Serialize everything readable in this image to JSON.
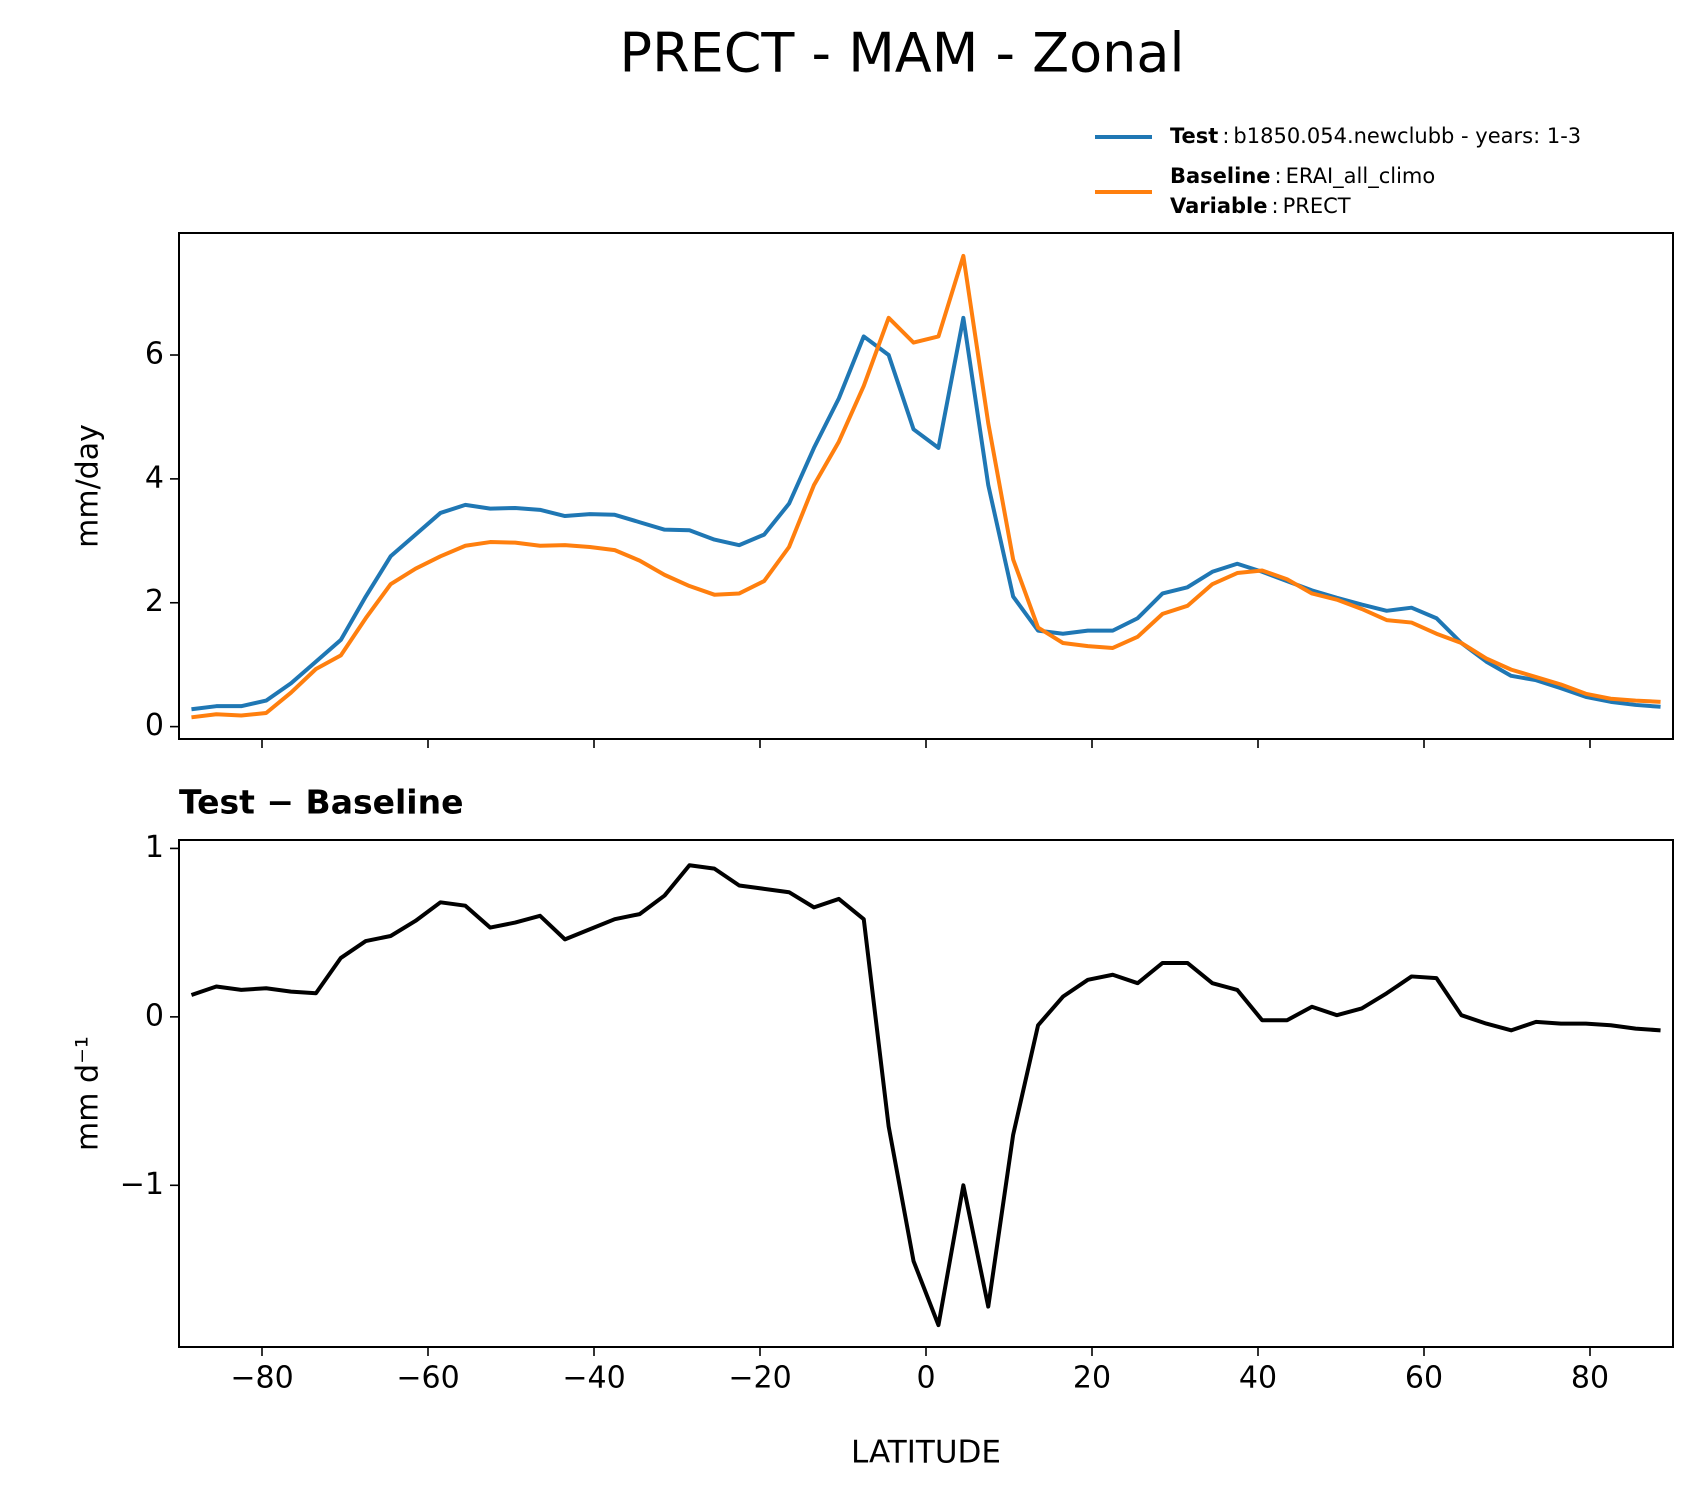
{
  "title": "PRECT - MAM - Zonal",
  "legend_separator": ":",
  "legend_variable": {
    "name": "Variable",
    "text": "PRECT"
  },
  "chart_data": [
    {
      "type": "line",
      "ylabel": "mm/day",
      "x": [
        -88.5,
        -85.5,
        -82.5,
        -79.5,
        -76.5,
        -73.5,
        -70.5,
        -67.5,
        -64.5,
        -61.5,
        -58.5,
        -55.5,
        -52.5,
        -49.5,
        -46.5,
        -43.5,
        -40.5,
        -37.5,
        -34.5,
        -31.5,
        -28.5,
        -25.5,
        -22.5,
        -19.5,
        -16.5,
        -13.5,
        -10.5,
        -7.5,
        -4.5,
        -1.5,
        1.5,
        4.5,
        7.5,
        10.5,
        13.5,
        16.5,
        19.5,
        22.5,
        25.5,
        28.5,
        31.5,
        34.5,
        37.5,
        40.5,
        43.5,
        46.5,
        49.5,
        52.5,
        55.5,
        58.5,
        61.5,
        64.5,
        67.5,
        70.5,
        73.5,
        76.5,
        79.5,
        82.5,
        85.5,
        88.5
      ],
      "series": [
        {
          "name": "Test",
          "text": "b1850.054.newclubb - years: 1-3",
          "color": "#1f77b4",
          "values": [
            0.28,
            0.33,
            0.33,
            0.42,
            0.7,
            1.05,
            1.4,
            2.1,
            2.75,
            3.1,
            3.45,
            3.58,
            3.52,
            3.53,
            3.5,
            3.4,
            3.43,
            3.42,
            3.3,
            3.18,
            3.17,
            3.02,
            2.93,
            3.1,
            3.6,
            4.5,
            5.3,
            6.3,
            6.0,
            4.8,
            4.5,
            6.6,
            3.9,
            2.1,
            1.55,
            1.5,
            1.55,
            1.55,
            1.75,
            2.15,
            2.25,
            2.5,
            2.63,
            2.5,
            2.35,
            2.2,
            2.08,
            1.97,
            1.87,
            1.92,
            1.75,
            1.35,
            1.05,
            0.82,
            0.75,
            0.62,
            0.48,
            0.4,
            0.35,
            0.32
          ]
        },
        {
          "name": "Baseline",
          "text": "ERAI_all_climo",
          "color": "#ff7f0e",
          "values": [
            0.15,
            0.2,
            0.18,
            0.22,
            0.55,
            0.93,
            1.15,
            1.75,
            2.3,
            2.55,
            2.75,
            2.92,
            2.98,
            2.97,
            2.92,
            2.93,
            2.9,
            2.85,
            2.68,
            2.45,
            2.27,
            2.13,
            2.15,
            2.35,
            2.9,
            3.9,
            4.6,
            5.5,
            6.6,
            6.2,
            6.3,
            7.6,
            4.9,
            2.7,
            1.6,
            1.35,
            1.3,
            1.27,
            1.45,
            1.82,
            1.95,
            2.3,
            2.48,
            2.52,
            2.38,
            2.15,
            2.05,
            1.9,
            1.72,
            1.68,
            1.5,
            1.35,
            1.1,
            0.92,
            0.8,
            0.68,
            0.53,
            0.45,
            0.42,
            0.4
          ]
        }
      ],
      "xlim": [
        -90,
        90
      ],
      "xticks": [
        {
          "value": -80,
          "label": "−80"
        },
        {
          "value": -60,
          "label": "−60"
        },
        {
          "value": -40,
          "label": "−40"
        },
        {
          "value": -20,
          "label": "−20"
        },
        0,
        20,
        40,
        60,
        80
      ],
      "xtick_labels": false,
      "ylim": [
        -0.2,
        7.97
      ],
      "yticks": [
        0,
        2,
        4,
        6
      ]
    },
    {
      "type": "line",
      "title": "Test − Baseline",
      "ylabel": "mm d⁻¹",
      "xlabel": "LATITUDE",
      "x": [
        -88.5,
        -85.5,
        -82.5,
        -79.5,
        -76.5,
        -73.5,
        -70.5,
        -67.5,
        -64.5,
        -61.5,
        -58.5,
        -55.5,
        -52.5,
        -49.5,
        -46.5,
        -43.5,
        -40.5,
        -37.5,
        -34.5,
        -31.5,
        -28.5,
        -25.5,
        -22.5,
        -19.5,
        -16.5,
        -13.5,
        -10.5,
        -7.5,
        -4.5,
        -1.5,
        1.5,
        4.5,
        7.5,
        10.5,
        13.5,
        16.5,
        19.5,
        22.5,
        25.5,
        28.5,
        31.5,
        34.5,
        37.5,
        40.5,
        43.5,
        46.5,
        49.5,
        52.5,
        55.5,
        58.5,
        61.5,
        64.5,
        67.5,
        70.5,
        73.5,
        76.5,
        79.5,
        82.5,
        85.5,
        88.5
      ],
      "series": [
        {
          "color": "#000000",
          "values": [
            0.13,
            0.18,
            0.16,
            0.17,
            0.15,
            0.14,
            0.35,
            0.45,
            0.48,
            0.57,
            0.68,
            0.66,
            0.53,
            0.56,
            0.6,
            0.46,
            0.52,
            0.58,
            0.61,
            0.72,
            0.9,
            0.88,
            0.78,
            0.76,
            0.74,
            0.65,
            0.7,
            0.58,
            -0.65,
            -1.45,
            -1.83,
            -1.0,
            -1.72,
            -0.7,
            -0.05,
            0.12,
            0.22,
            0.25,
            0.2,
            0.32,
            0.32,
            0.2,
            0.16,
            -0.02,
            -0.02,
            0.06,
            0.01,
            0.05,
            0.14,
            0.24,
            0.23,
            0.01,
            -0.04,
            -0.08,
            -0.03,
            -0.04,
            -0.04,
            -0.05,
            -0.07,
            -0.08
          ]
        }
      ],
      "xlim": [
        -90,
        90
      ],
      "xticks": [
        {
          "value": -80,
          "label": "−80"
        },
        {
          "value": -60,
          "label": "−60"
        },
        {
          "value": -40,
          "label": "−40"
        },
        {
          "value": -20,
          "label": "−20"
        },
        0,
        20,
        40,
        60,
        80
      ],
      "xtick_labels": true,
      "ylim": [
        -1.96,
        1.05
      ],
      "yticks": [
        {
          "value": -1,
          "label": "−1"
        },
        0,
        1
      ]
    }
  ]
}
